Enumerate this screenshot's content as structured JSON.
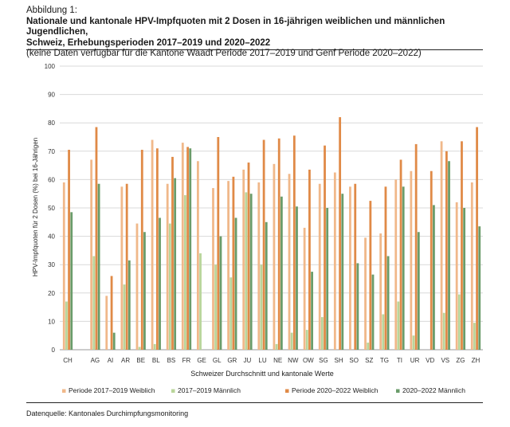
{
  "header": {
    "figure_label": "Abbildung 1:",
    "title_line1": "Nationale und kantonale HPV-Impfquoten mit 2 Dosen in 16-jährigen weiblichen und männlichen Jugendlichen,",
    "title_line2": "Schweiz, Erhebungsperioden 2017–2019 und 2020–2022",
    "note": "(keine Daten verfügbar für die Kantone Waadt Periode 2017–2019 und Genf Periode 2020–2022)"
  },
  "source": "Datenquelle: Kantonales Durchimpfungsmonitoring",
  "colors": {
    "p1_female": "#f0b88a",
    "p1_male": "#b9d59a",
    "p2_female": "#e08a47",
    "p2_male": "#6a9c6a"
  },
  "chart_data": {
    "type": "bar",
    "title": "Nationale und kantonale HPV-Impfquoten mit 2 Dosen in 16-jährigen weiblichen und männlichen Jugendlichen, Schweiz, Erhebungsperioden 2017–2019 und 2020–2022",
    "xlabel": "Schweizer Durchschnitt und kantonale Werte",
    "ylabel": "HPV-Impfquoten für 2 Dosen (%) bei 16-Jährigen",
    "ylim": [
      0,
      100
    ],
    "yticks": [
      "0",
      "10",
      "20",
      "30",
      "40",
      "50",
      "60",
      "70",
      "80",
      "90",
      "100"
    ],
    "grid": true,
    "legend": "bottom",
    "categories": [
      "CH",
      "AG",
      "AI",
      "AR",
      "BE",
      "BL",
      "BS",
      "FR",
      "GE",
      "GL",
      "GR",
      "JU",
      "LU",
      "NE",
      "NW",
      "OW",
      "SG",
      "SH",
      "SO",
      "SZ",
      "TG",
      "TI",
      "UR",
      "VD",
      "VS",
      "ZG",
      "ZH"
    ],
    "series": [
      {
        "name": "Periode 2017–2019 Weiblich",
        "values": [
          59,
          67,
          19,
          57.5,
          44.5,
          74,
          58.5,
          73,
          66.5,
          57,
          59.5,
          63.5,
          59,
          65.5,
          62,
          43,
          58.5,
          62.5,
          57.5,
          39.5,
          41,
          60,
          63,
          null,
          73.5,
          52,
          59
        ]
      },
      {
        "name": "2017–2019 Männlich",
        "values": [
          17,
          33,
          0,
          23,
          1,
          2,
          44.5,
          54.5,
          34,
          30,
          25.5,
          55.5,
          30,
          2,
          6,
          7,
          11.5,
          0,
          0,
          2.5,
          12.5,
          17,
          5,
          null,
          13,
          19.5,
          9.5
        ]
      },
      {
        "name": "Periode 2020–2022 Weiblich",
        "values": [
          70.5,
          78.5,
          26,
          58.5,
          70.5,
          71,
          68,
          71.5,
          null,
          75,
          61,
          66,
          74,
          74.5,
          75.5,
          63.5,
          72,
          82,
          58.5,
          52.5,
          57.5,
          67,
          72.5,
          63,
          70,
          73.5,
          78.5
        ]
      },
      {
        "name": "2020–2022 Männlich",
        "values": [
          48.5,
          58.5,
          6,
          31.5,
          41.5,
          46.5,
          60.5,
          71,
          null,
          40,
          46.5,
          55,
          45,
          54,
          50.5,
          27.5,
          50,
          55,
          30.5,
          26.5,
          33,
          57.5,
          41.5,
          51,
          66.5,
          50,
          43.5
        ]
      }
    ]
  }
}
